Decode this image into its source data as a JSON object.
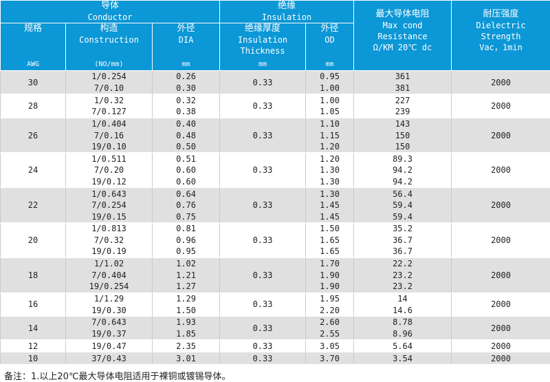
{
  "header": {
    "conductor_zh": "导体",
    "conductor_en": "Conductor",
    "insulation_zh": "绝缘",
    "insulation_en": "Insulation",
    "resistance_zh": "最大导体电阻",
    "resistance_en1": "Max cond",
    "resistance_en2": "Resistance",
    "resistance_en3": "Ω/KM 20℃ dc",
    "dielectric_zh": "耐压强度",
    "dielectric_en1": "Dielectric",
    "dielectric_en2": "Strength",
    "dielectric_en3": "Vac，1min",
    "awg_zh": "规格",
    "awg_unit": "AWG",
    "construction_zh": "构造",
    "construction_en": "Construction",
    "construction_unit": "(NO/mm)",
    "dia_zh": "外径",
    "dia_en": "DIA",
    "dia_unit": "mm",
    "thickness_zh": "绝缘厚度",
    "thickness_en1": "Insulation",
    "thickness_en2": "Thickness",
    "thickness_unit": "mm",
    "od_zh": "外径",
    "od_en": "OD",
    "od_unit": "mm"
  },
  "groups": [
    {
      "awg": "30",
      "thickness": "0.33",
      "dielectric": "2000",
      "rows": [
        {
          "construction": "1/0.254",
          "dia": "0.26",
          "od": "0.95",
          "resistance": "361"
        },
        {
          "construction": "7/0.10",
          "dia": "0.30",
          "od": "1.00",
          "resistance": "381"
        }
      ]
    },
    {
      "awg": "28",
      "thickness": "0.33",
      "dielectric": "2000",
      "rows": [
        {
          "construction": "1/0.32",
          "dia": "0.32",
          "od": "1.00",
          "resistance": "227"
        },
        {
          "construction": "7/0.127",
          "dia": "0.38",
          "od": "1.05",
          "resistance": "239"
        }
      ]
    },
    {
      "awg": "26",
      "thickness": "0.33",
      "dielectric": "2000",
      "rows": [
        {
          "construction": "1/0.404",
          "dia": "0.40",
          "od": "1.10",
          "resistance": "143"
        },
        {
          "construction": "7/0.16",
          "dia": "0.48",
          "od": "1.15",
          "resistance": "150"
        },
        {
          "construction": "19/0.10",
          "dia": "0.50",
          "od": "1.20",
          "resistance": "150"
        }
      ]
    },
    {
      "awg": "24",
      "thickness": "0.33",
      "dielectric": "2000",
      "rows": [
        {
          "construction": "1/0.511",
          "dia": "0.51",
          "od": "1.20",
          "resistance": "89.3"
        },
        {
          "construction": "7/0.20",
          "dia": "0.60",
          "od": "1.30",
          "resistance": "94.2"
        },
        {
          "construction": "19/0.12",
          "dia": "0.60",
          "od": "1.30",
          "resistance": "94.2"
        }
      ]
    },
    {
      "awg": "22",
      "thickness": "0.33",
      "dielectric": "2000",
      "rows": [
        {
          "construction": "1/0.643",
          "dia": "0.64",
          "od": "1.30",
          "resistance": "56.4"
        },
        {
          "construction": "7/0.254",
          "dia": "0.76",
          "od": "1.45",
          "resistance": "59.4"
        },
        {
          "construction": "19/0.15",
          "dia": "0.75",
          "od": "1.45",
          "resistance": "59.4"
        }
      ]
    },
    {
      "awg": "20",
      "thickness": "0.33",
      "dielectric": "2000",
      "rows": [
        {
          "construction": "1/0.813",
          "dia": "0.81",
          "od": "1.50",
          "resistance": "35.2"
        },
        {
          "construction": "7/0.32",
          "dia": "0.96",
          "od": "1.65",
          "resistance": "36.7"
        },
        {
          "construction": "19/0.19",
          "dia": "0.95",
          "od": "1.65",
          "resistance": "36.7"
        }
      ]
    },
    {
      "awg": "18",
      "thickness": "0.33",
      "dielectric": "2000",
      "rows": [
        {
          "construction": "1/1.02",
          "dia": "1.02",
          "od": "1.70",
          "resistance": "22.2"
        },
        {
          "construction": "7/0.404",
          "dia": "1.21",
          "od": "1.90",
          "resistance": "23.2"
        },
        {
          "construction": "19/0.254",
          "dia": "1.27",
          "od": "1.90",
          "resistance": "23.2"
        }
      ]
    },
    {
      "awg": "16",
      "thickness": "0.33",
      "dielectric": "2000",
      "rows": [
        {
          "construction": "1/1.29",
          "dia": "1.29",
          "od": "1.95",
          "resistance": "14"
        },
        {
          "construction": "19/0.30",
          "dia": "1.50",
          "od": "2.20",
          "resistance": "14.6"
        }
      ]
    },
    {
      "awg": "14",
      "thickness": "0.33",
      "dielectric": "2000",
      "rows": [
        {
          "construction": "7/0.643",
          "dia": "1.93",
          "od": "2.60",
          "resistance": "8.78"
        },
        {
          "construction": "19/0.37",
          "dia": "1.85",
          "od": "2.55",
          "resistance": "8.96"
        }
      ]
    },
    {
      "awg": "12",
      "thickness": "0.33",
      "dielectric": "2000",
      "rows": [
        {
          "construction": "19/0.47",
          "dia": "2.35",
          "od": "3.05",
          "resistance": "5.64"
        }
      ]
    },
    {
      "awg": "10",
      "thickness": "0.33",
      "dielectric": "2000",
      "rows": [
        {
          "construction": "37/0.43",
          "dia": "3.01",
          "od": "3.70",
          "resistance": "3.54"
        }
      ]
    }
  ],
  "footnote": "备注：1.以上20℃最大导体电阻适用于裸铜或镀锡导体。",
  "colors": {
    "header_bg": "#0c97d6",
    "row_shade": "#e0e0e0",
    "row_plain": "#ffffff"
  }
}
